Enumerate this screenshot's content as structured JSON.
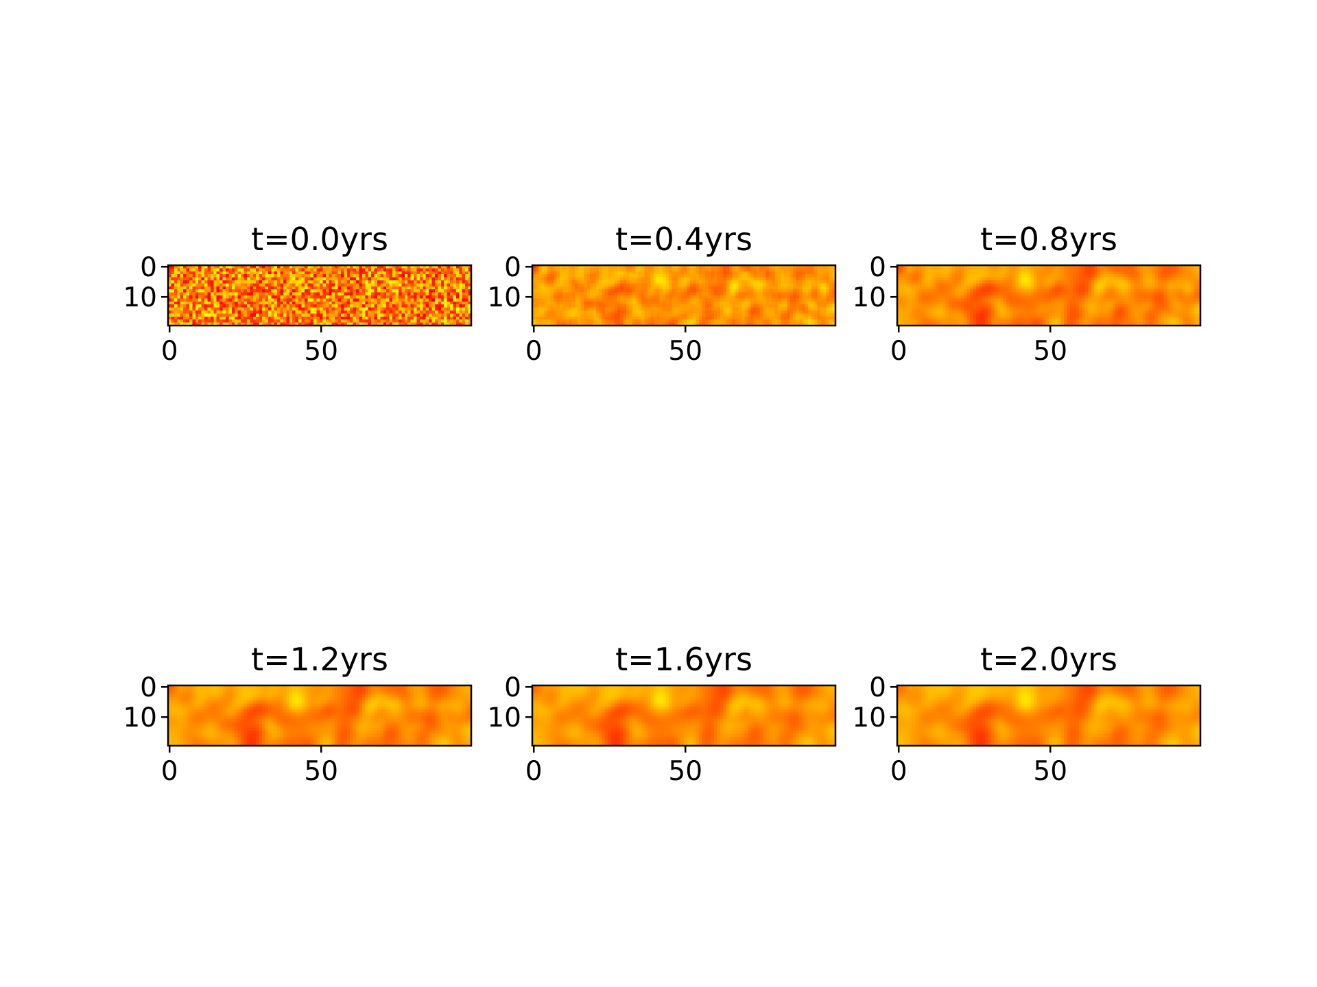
{
  "chart_data": [
    {
      "type": "heatmap",
      "title": "t=0.0yrs",
      "grid_shape": [
        20,
        100
      ],
      "colormap": "autumn",
      "x_ticks": [
        0,
        50
      ],
      "y_ticks": [
        0,
        10
      ],
      "field": "random"
    },
    {
      "type": "heatmap",
      "title": "t=0.4yrs",
      "grid_shape": [
        20,
        100
      ],
      "colormap": "autumn",
      "x_ticks": [
        0,
        50
      ],
      "y_ticks": [
        0,
        10
      ],
      "field": "smoothed"
    },
    {
      "type": "heatmap",
      "title": "t=0.8yrs",
      "grid_shape": [
        20,
        100
      ],
      "colormap": "autumn",
      "x_ticks": [
        0,
        50
      ],
      "y_ticks": [
        0,
        10
      ],
      "field": "smoothed"
    },
    {
      "type": "heatmap",
      "title": "t=1.2yrs",
      "grid_shape": [
        20,
        100
      ],
      "colormap": "autumn",
      "x_ticks": [
        0,
        50
      ],
      "y_ticks": [
        0,
        10
      ],
      "field": "smoothed"
    },
    {
      "type": "heatmap",
      "title": "t=1.6yrs",
      "grid_shape": [
        20,
        100
      ],
      "colormap": "autumn",
      "x_ticks": [
        0,
        50
      ],
      "y_ticks": [
        0,
        10
      ],
      "field": "smoothed"
    },
    {
      "type": "heatmap",
      "title": "t=2.0yrs",
      "grid_shape": [
        20,
        100
      ],
      "colormap": "autumn",
      "x_ticks": [
        0,
        50
      ],
      "y_ticks": [
        0,
        10
      ],
      "field": "smoothed"
    }
  ]
}
